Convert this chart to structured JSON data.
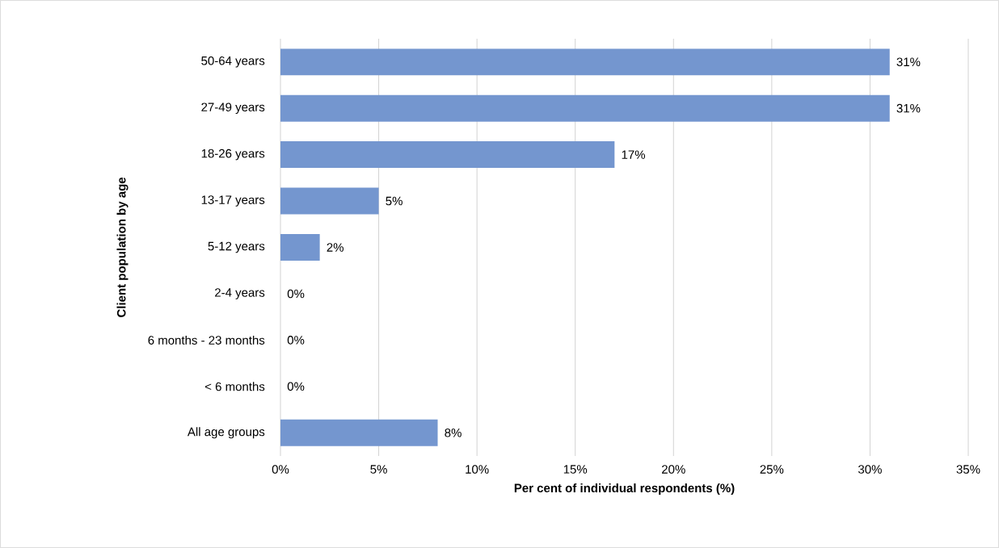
{
  "chart_data": {
    "type": "bar",
    "orientation": "horizontal",
    "categories": [
      "50-64 years",
      "27-49 years",
      "18-26 years",
      "13-17 years",
      "5-12 years",
      "2-4 years",
      "6 months - 23 months",
      "< 6 months",
      "All age groups"
    ],
    "values": [
      31,
      31,
      17,
      5,
      2,
      0,
      0,
      0,
      8
    ],
    "value_labels": [
      "31%",
      "31%",
      "17%",
      "5%",
      "2%",
      "0%",
      "0%",
      "0%",
      "8%"
    ],
    "color": "#7496cf",
    "xlim": [
      0,
      35
    ],
    "xticks": [
      {
        "value": 0,
        "label": "0%"
      },
      {
        "value": 5,
        "label": "5%"
      },
      {
        "value": 10,
        "label": "10%"
      },
      {
        "value": 15,
        "label": "15%"
      },
      {
        "value": 20,
        "label": "20%"
      },
      {
        "value": 25,
        "label": "25%"
      },
      {
        "value": 30,
        "label": "30%"
      },
      {
        "value": 35,
        "label": "35%"
      }
    ],
    "grid": "x",
    "xlabel": "Per cent of individual respondents (%)",
    "ylabel": "Client population by age"
  }
}
